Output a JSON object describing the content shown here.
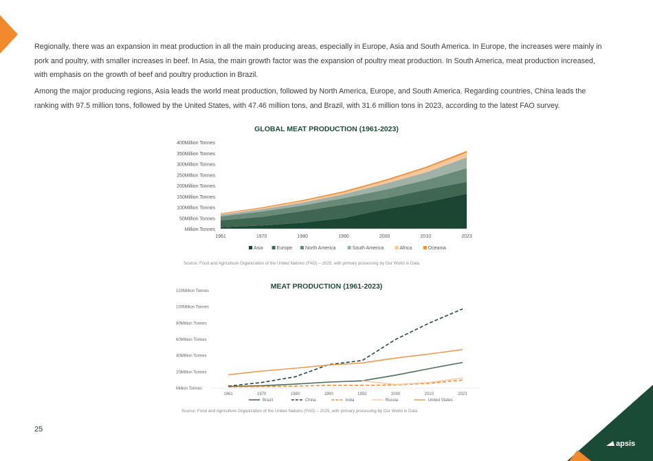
{
  "paragraphs": [
    "Regionally, there was an expansion in meat production in all the main producing areas, especially in Europe, Asia and South America. In Europe, the increases were mainly in pork and poultry, with smaller increases in beef. In Asia, the main growth factor was the expansion of poultry meat production. In South America, meat production increased, with emphasis on the growth of beef and poultry production in Brazil.",
    "Among the major producing regions, Asia leads the world meat production, followed by North America, Europe, and South America. Regarding countries, China leads the ranking with 97.5 million tons, followed by  the United States, with 47.46 million tons, and Brazil, with 31.6 million tons in 2023, according to the latest FAO survey."
  ],
  "page_number": "25",
  "logo_text": "apsis",
  "colors": {
    "brand_green": "#1b4a37",
    "brand_orange": "#f08a2c"
  },
  "chart_data": [
    {
      "type": "area",
      "stacked": true,
      "title": "GLOBAL MEAT PRODUCTION (1961-2023)",
      "categories": [
        "1961",
        "1970",
        "1980",
        "1990",
        "2000",
        "2010",
        "2023"
      ],
      "ylim": [
        0,
        400
      ],
      "yticks": [
        "Million Tonnes",
        "50Million Tonnes",
        "100Million Tonnes",
        "150Million Tonnes",
        "200Million Tonnes",
        "250Million Tonnes",
        "300Million Tonnes",
        "350Million Tonnes",
        "400Million Tonnes"
      ],
      "legend_position": "bottom",
      "grid": false,
      "series": [
        {
          "name": "Asia",
          "color": "#1a4533",
          "values": [
            7,
            15,
            28,
            50,
            90,
            122,
            162
          ]
        },
        {
          "name": "Europe",
          "color": "#3e6651",
          "values": [
            32,
            40,
            54,
            62,
            50,
            58,
            55
          ]
        },
        {
          "name": "North America",
          "color": "#6a8a78",
          "values": [
            18,
            25,
            26,
            30,
            40,
            45,
            63
          ]
        },
        {
          "name": "South America",
          "color": "#a0b2a7",
          "values": [
            8,
            10,
            13,
            18,
            28,
            35,
            50
          ]
        },
        {
          "name": "Africa",
          "color": "#f6c79a",
          "values": [
            4,
            5,
            7,
            8,
            12,
            20,
            22
          ]
        },
        {
          "name": "Oceania",
          "color": "#ef8f3a",
          "values": [
            3,
            4,
            5,
            6,
            6,
            6,
            8
          ]
        }
      ],
      "source": "Source: Food and Agriculture Organization of the United Nations (FAO) – 2025, with primary processing by Our World in Data"
    },
    {
      "type": "line",
      "title": "MEAT PRODUCTION (1961-2023)",
      "categories": [
        "1961",
        "1970",
        "1980",
        "1990",
        "1992",
        "2000",
        "2010",
        "2023"
      ],
      "ylim": [
        0,
        120
      ],
      "yticks": [
        "Million Tonnes",
        "20Million Tonnes",
        "40Million Tonnes",
        "60Million Tonnes",
        "80Million Tonnes",
        "100Million Tonnes",
        "120Million Tonnes"
      ],
      "legend_position": "bottom",
      "grid": false,
      "series": [
        {
          "name": "Brazil",
          "color": "#4a6e5a",
          "dash": false,
          "values": [
            2,
            3,
            5,
            7.5,
            9,
            16,
            24,
            31.6
          ]
        },
        {
          "name": "China",
          "color": "#1f4a37",
          "dash": true,
          "values": [
            2.5,
            7,
            14,
            29,
            34,
            60,
            80,
            97.5
          ]
        },
        {
          "name": "India",
          "color": "#ef8a3a",
          "dash": true,
          "values": [
            1.5,
            2,
            2.5,
            3.5,
            3.5,
            4,
            6,
            10
          ]
        },
        {
          "name": "Russia",
          "color": "#f6cba8",
          "dash": false,
          "values": [
            null,
            null,
            null,
            null,
            9,
            4.5,
            7,
            12.5
          ]
        },
        {
          "name": "United States",
          "color": "#ee9a4f",
          "dash": false,
          "values": [
            16.5,
            21,
            24.5,
            28.5,
            31,
            37,
            42,
            47.46
          ]
        }
      ],
      "source": "Source: Food and Agriculture Organization of the United Nations (FAO) – 2025, with primary processing by Our World in Data"
    }
  ]
}
